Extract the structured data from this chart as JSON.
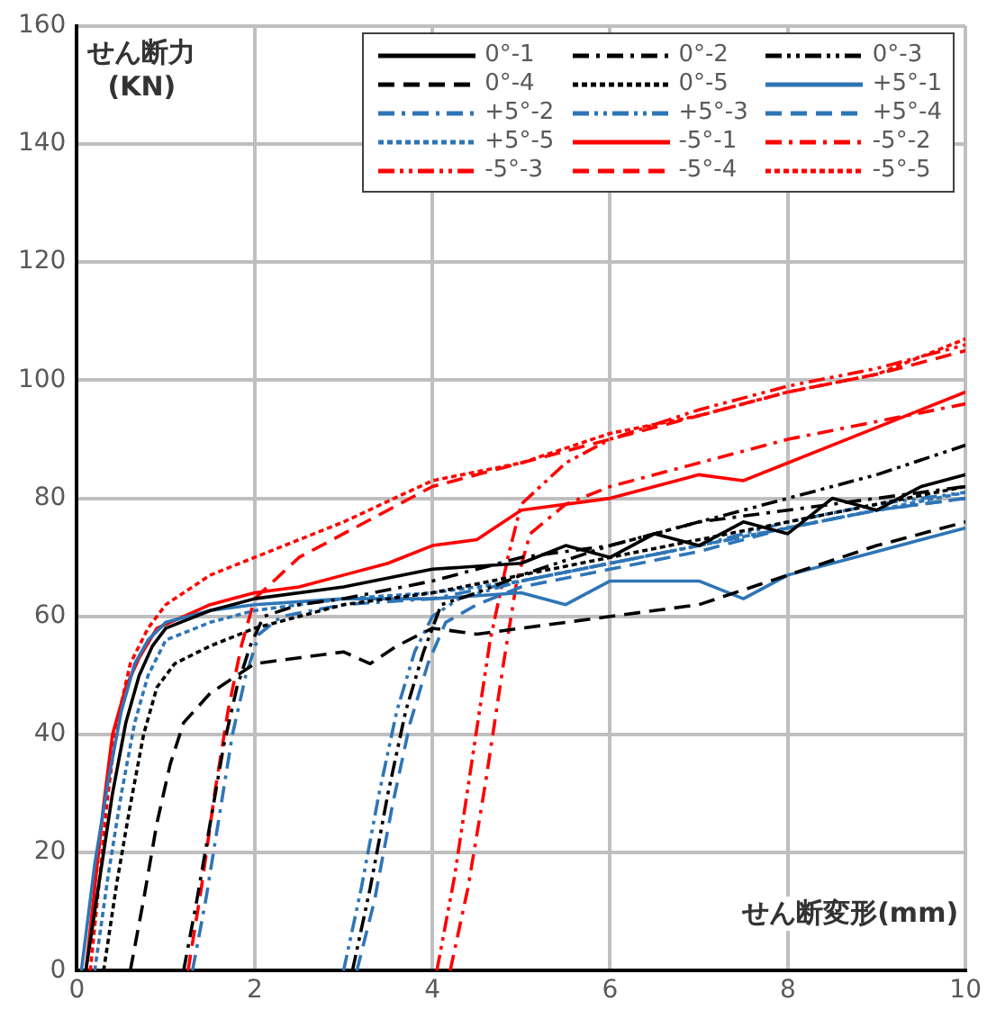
{
  "chart_data": {
    "type": "line",
    "xlabel": "せん断変形(mm)",
    "ylabel": "せん断力\n(KN)",
    "xlim": [
      0,
      10
    ],
    "xticks": [
      0,
      2,
      4,
      6,
      8,
      10
    ],
    "ylim": [
      0,
      160
    ],
    "yticks": [
      0,
      20,
      40,
      60,
      80,
      100,
      120,
      140,
      160
    ],
    "grid": true,
    "legend": "top right",
    "marker": "none",
    "series": [
      {
        "name": "0°-1",
        "color": "#000000",
        "line_style": "solid",
        "x": [
          0.1,
          0.25,
          0.4,
          0.55,
          0.7,
          0.85,
          1.0,
          1.5,
          2,
          3,
          4,
          5,
          5.5,
          6,
          6.5,
          7,
          7.5,
          8,
          8.5,
          9,
          9.5,
          10
        ],
        "values": [
          0,
          15,
          30,
          42,
          50,
          55,
          58,
          61,
          63,
          65,
          68,
          69,
          72,
          70,
          74,
          72,
          76,
          74,
          80,
          78,
          82,
          84
        ]
      },
      {
        "name": "0°-2",
        "color": "#000000",
        "line_style": "dashdot",
        "x": [
          1.2,
          1.35,
          1.5,
          1.65,
          1.8,
          1.95,
          2.1,
          2.5,
          3,
          4,
          5,
          6,
          7,
          8,
          9,
          10
        ],
        "values": [
          0,
          12,
          25,
          38,
          48,
          55,
          60,
          62,
          63,
          66,
          70,
          72,
          76,
          78,
          80,
          82
        ]
      },
      {
        "name": "0°-3",
        "color": "#000000",
        "line_style": "dashdotdot",
        "x": [
          3.1,
          3.3,
          3.5,
          3.7,
          3.9,
          4.1,
          4.5,
          5,
          6,
          7,
          8,
          9,
          10
        ],
        "values": [
          0,
          14,
          30,
          44,
          54,
          62,
          64,
          67,
          72,
          76,
          80,
          84,
          89
        ]
      },
      {
        "name": "0°-4",
        "color": "#000000",
        "line_style": "dashed",
        "x": [
          0.6,
          0.75,
          0.9,
          1.05,
          1.2,
          1.5,
          2,
          2.5,
          3,
          3.3,
          3.6,
          4,
          4.5,
          5,
          6,
          7,
          8,
          9,
          10
        ],
        "values": [
          0,
          12,
          25,
          35,
          42,
          47,
          52,
          53,
          54,
          52,
          55,
          58,
          57,
          58,
          60,
          62,
          67,
          72,
          76
        ]
      },
      {
        "name": "0°-5",
        "color": "#000000",
        "line_style": "dotted",
        "x": [
          0.3,
          0.45,
          0.6,
          0.75,
          0.9,
          1.1,
          1.5,
          2,
          3,
          4,
          5,
          6,
          7,
          8,
          9,
          10
        ],
        "values": [
          0,
          15,
          28,
          40,
          48,
          52,
          55,
          58,
          62,
          64,
          67,
          70,
          73,
          76,
          79,
          82
        ]
      },
      {
        "name": "+5°-1",
        "color": "#2e75b6",
        "line_style": "solid",
        "x": [
          0.05,
          0.2,
          0.35,
          0.5,
          0.65,
          0.8,
          1.0,
          1.5,
          2,
          3,
          4,
          5,
          5.5,
          6,
          7,
          7.5,
          8,
          9,
          10
        ],
        "values": [
          0,
          18,
          32,
          44,
          52,
          56,
          59,
          61,
          62,
          63,
          63,
          64,
          62,
          66,
          66,
          63,
          67,
          71,
          75
        ]
      },
      {
        "name": "+5°-2",
        "color": "#2e75b6",
        "line_style": "dashdot",
        "x": [
          1.3,
          1.45,
          1.6,
          1.75,
          1.9,
          2.05,
          2.3,
          3,
          4,
          5,
          6,
          7,
          8,
          9,
          10
        ],
        "values": [
          0,
          12,
          26,
          40,
          50,
          57,
          60,
          62,
          63,
          66,
          69,
          72,
          75,
          78,
          80
        ]
      },
      {
        "name": "+5°-3",
        "color": "#2e75b6",
        "line_style": "dashdotdot",
        "x": [
          3.0,
          3.2,
          3.4,
          3.6,
          3.8,
          4.0,
          4.3,
          5,
          6,
          7,
          8,
          9,
          10
        ],
        "values": [
          0,
          14,
          30,
          44,
          54,
          60,
          63,
          66,
          69,
          72,
          76,
          79,
          81
        ]
      },
      {
        "name": "+5°-4",
        "color": "#2e75b6",
        "line_style": "dashed",
        "x": [
          3.15,
          3.35,
          3.55,
          3.75,
          3.95,
          4.15,
          4.5,
          5,
          6,
          7,
          8,
          9,
          10
        ],
        "values": [
          0,
          12,
          28,
          42,
          52,
          59,
          62,
          65,
          68,
          71,
          75,
          78,
          80
        ]
      },
      {
        "name": "+5°-5",
        "color": "#2e75b6",
        "line_style": "dotted",
        "x": [
          0.2,
          0.35,
          0.5,
          0.65,
          0.8,
          1.0,
          1.5,
          2,
          3,
          4,
          5,
          6,
          7,
          8,
          9,
          10
        ],
        "values": [
          0,
          16,
          30,
          42,
          50,
          56,
          59,
          61,
          63,
          64,
          66,
          69,
          72,
          75,
          78,
          81
        ]
      },
      {
        "name": "-5°-1",
        "color": "#ff0000",
        "line_style": "solid",
        "x": [
          0.1,
          0.2,
          0.3,
          0.4,
          0.55,
          0.7,
          0.9,
          1.2,
          1.5,
          2,
          2.5,
          3,
          3.5,
          4,
          4.5,
          5,
          6,
          7,
          7.5,
          8,
          9,
          10
        ],
        "values": [
          0,
          14,
          28,
          40,
          48,
          53,
          58,
          60,
          62,
          64,
          65,
          67,
          69,
          72,
          73,
          78,
          80,
          84,
          83,
          86,
          92,
          98
        ]
      },
      {
        "name": "-5°-2",
        "color": "#ff0000",
        "line_style": "dashdot",
        "x": [
          4.2,
          4.4,
          4.6,
          4.8,
          4.95,
          5.1,
          5.5,
          6,
          7,
          8,
          9,
          10
        ],
        "values": [
          0,
          14,
          32,
          52,
          66,
          74,
          79,
          82,
          86,
          90,
          93,
          96
        ]
      },
      {
        "name": "-5°-3",
        "color": "#ff0000",
        "line_style": "dashdotdot",
        "x": [
          4.05,
          4.25,
          4.45,
          4.65,
          4.85,
          5.0,
          5.5,
          6,
          7,
          8,
          9,
          10
        ],
        "values": [
          0,
          16,
          36,
          56,
          70,
          79,
          86,
          90,
          95,
          99,
          102,
          106
        ]
      },
      {
        "name": "-5°-4",
        "color": "#ff0000",
        "line_style": "dashed",
        "x": [
          1.25,
          1.4,
          1.55,
          1.7,
          1.85,
          2.0,
          2.5,
          3,
          3.5,
          4,
          5,
          6,
          7,
          8,
          9,
          10
        ],
        "values": [
          0,
          14,
          30,
          44,
          55,
          63,
          70,
          74,
          78,
          82,
          86,
          90,
          94,
          98,
          101,
          105
        ]
      },
      {
        "name": "-5°-5",
        "color": "#ff0000",
        "line_style": "dotted",
        "x": [
          0.15,
          0.25,
          0.35,
          0.45,
          0.6,
          0.8,
          1.0,
          1.5,
          2,
          3,
          4,
          5,
          6,
          7,
          8,
          9,
          10
        ],
        "values": [
          0,
          15,
          30,
          42,
          52,
          58,
          62,
          67,
          70,
          76,
          83,
          86,
          91,
          94,
          98,
          101,
          107
        ]
      }
    ]
  }
}
